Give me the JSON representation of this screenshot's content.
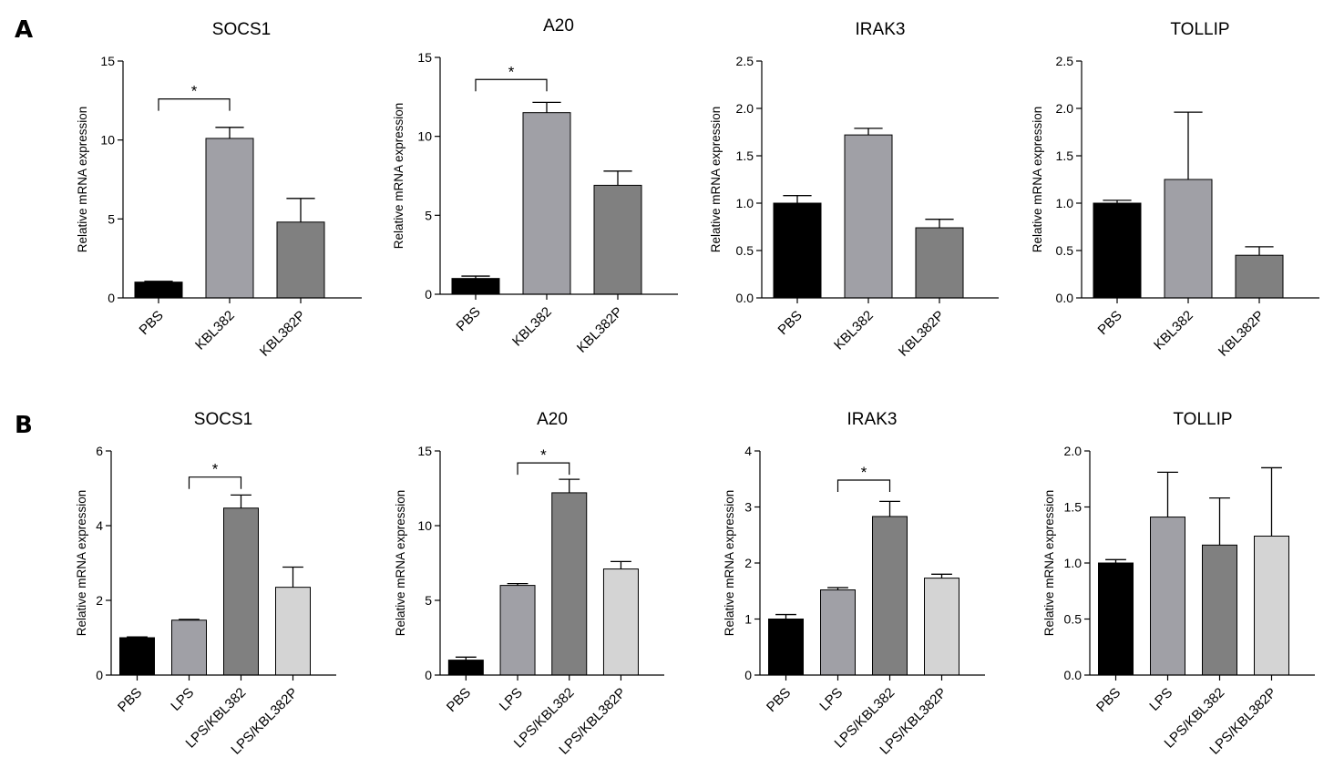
{
  "panels": [
    {
      "letter": "A"
    },
    {
      "letter": "B"
    }
  ],
  "chart_data": [
    {
      "panel": "A",
      "type": "bar",
      "title": "SOCS1",
      "ylabel": "Relative mRNA expression",
      "categories": [
        "PBS",
        "KBL382",
        "KBL382P"
      ],
      "values": [
        1.0,
        10.1,
        4.8
      ],
      "errors": [
        0.05,
        0.7,
        1.5
      ],
      "colors": [
        "#000000",
        "#a0a0a6",
        "#808080"
      ],
      "ylim": [
        0,
        15
      ],
      "yticks": [
        "0",
        "5",
        "10",
        "15"
      ],
      "ytick_values": [
        0,
        5,
        10,
        15
      ],
      "significance": [
        {
          "from": 0,
          "to": 1,
          "label": "*",
          "y": 12.6
        }
      ]
    },
    {
      "panel": "A",
      "type": "bar",
      "title": "A20",
      "ylabel": "Relative mRNA expression",
      "categories": [
        "PBS",
        "KBL382",
        "KBL382P"
      ],
      "values": [
        1.0,
        11.5,
        6.9
      ],
      "errors": [
        0.15,
        0.65,
        0.9
      ],
      "colors": [
        "#000000",
        "#a0a0a6",
        "#808080"
      ],
      "ylim": [
        0,
        15
      ],
      "yticks": [
        "0",
        "5",
        "10",
        "15"
      ],
      "ytick_values": [
        0,
        5,
        10,
        15
      ],
      "significance": [
        {
          "from": 0,
          "to": 1,
          "label": "*",
          "y": 13.6
        }
      ]
    },
    {
      "panel": "A",
      "type": "bar",
      "title": "IRAK3",
      "ylabel": "Relative mRNA expression",
      "categories": [
        "PBS",
        "KBL382",
        "KBL382P"
      ],
      "values": [
        1.0,
        1.72,
        0.74
      ],
      "errors": [
        0.08,
        0.07,
        0.09
      ],
      "colors": [
        "#000000",
        "#a0a0a6",
        "#808080"
      ],
      "ylim": [
        0,
        2.5
      ],
      "yticks": [
        "0.0",
        "0.5",
        "1.0",
        "1.5",
        "2.0",
        "2.5"
      ],
      "ytick_values": [
        0,
        0.5,
        1,
        1.5,
        2,
        2.5
      ],
      "significance": []
    },
    {
      "panel": "A",
      "type": "bar",
      "title": "TOLLIP",
      "ylabel": "Relative mRNA expression",
      "categories": [
        "PBS",
        "KBL382",
        "KBL382P"
      ],
      "values": [
        1.0,
        1.25,
        0.45
      ],
      "errors": [
        0.03,
        0.71,
        0.09
      ],
      "colors": [
        "#000000",
        "#a0a0a6",
        "#808080"
      ],
      "ylim": [
        0,
        2.5
      ],
      "yticks": [
        "0.0",
        "0.5",
        "1.0",
        "1.5",
        "2.0",
        "2.5"
      ],
      "ytick_values": [
        0,
        0.5,
        1,
        1.5,
        2,
        2.5
      ],
      "significance": []
    },
    {
      "panel": "B",
      "type": "bar",
      "title": "SOCS1",
      "ylabel": "Relative mRNA expression",
      "categories": [
        "PBS",
        "LPS",
        "LPS/KBL382",
        "LPS/KBL382P"
      ],
      "values": [
        1.0,
        1.47,
        4.47,
        2.35
      ],
      "errors": [
        0.02,
        0.02,
        0.35,
        0.54
      ],
      "colors": [
        "#000000",
        "#a0a0a6",
        "#808080",
        "#d4d4d4"
      ],
      "ylim": [
        0,
        6
      ],
      "yticks": [
        "0",
        "2",
        "4",
        "6"
      ],
      "ytick_values": [
        0,
        2,
        4,
        6
      ],
      "significance": [
        {
          "from": 1,
          "to": 2,
          "label": "*",
          "y": 5.3
        }
      ]
    },
    {
      "panel": "B",
      "type": "bar",
      "title": "A20",
      "ylabel": "Relative mRNA expression",
      "categories": [
        "PBS",
        "LPS",
        "LPS/KBL382",
        "LPS/KBL382P"
      ],
      "values": [
        1.0,
        6.0,
        12.2,
        7.1
      ],
      "errors": [
        0.2,
        0.12,
        0.9,
        0.5
      ],
      "colors": [
        "#000000",
        "#a0a0a6",
        "#808080",
        "#d4d4d4"
      ],
      "ylim": [
        0,
        15
      ],
      "yticks": [
        "0",
        "5",
        "10",
        "15"
      ],
      "ytick_values": [
        0,
        5,
        10,
        15
      ],
      "significance": [
        {
          "from": 1,
          "to": 2,
          "label": "*",
          "y": 14.2
        }
      ]
    },
    {
      "panel": "B",
      "type": "bar",
      "title": "IRAK3",
      "ylabel": "Relative mRNA expression",
      "categories": [
        "PBS",
        "LPS",
        "LPS/KBL382",
        "LPS/KBL382P"
      ],
      "values": [
        1.0,
        1.52,
        2.83,
        1.73
      ],
      "errors": [
        0.08,
        0.04,
        0.27,
        0.07
      ],
      "colors": [
        "#000000",
        "#a0a0a6",
        "#808080",
        "#d4d4d4"
      ],
      "ylim": [
        0,
        4
      ],
      "yticks": [
        "0",
        "1",
        "2",
        "3",
        "4"
      ],
      "ytick_values": [
        0,
        1,
        2,
        3,
        4
      ],
      "significance": [
        {
          "from": 1,
          "to": 2,
          "label": "*",
          "y": 3.48
        }
      ]
    },
    {
      "panel": "B",
      "type": "bar",
      "title": "TOLLIP",
      "ylabel": "Relative mRNA expression",
      "categories": [
        "PBS",
        "LPS",
        "LPS/KBL382",
        "LPS/KBL382P"
      ],
      "values": [
        1.0,
        1.41,
        1.16,
        1.24
      ],
      "errors": [
        0.03,
        0.4,
        0.42,
        0.61
      ],
      "colors": [
        "#000000",
        "#a0a0a6",
        "#808080",
        "#d4d4d4"
      ],
      "ylim": [
        0,
        2.0
      ],
      "yticks": [
        "0.0",
        "0.5",
        "1.0",
        "1.5",
        "2.0"
      ],
      "ytick_values": [
        0,
        0.5,
        1,
        1.5,
        2
      ],
      "significance": []
    }
  ]
}
